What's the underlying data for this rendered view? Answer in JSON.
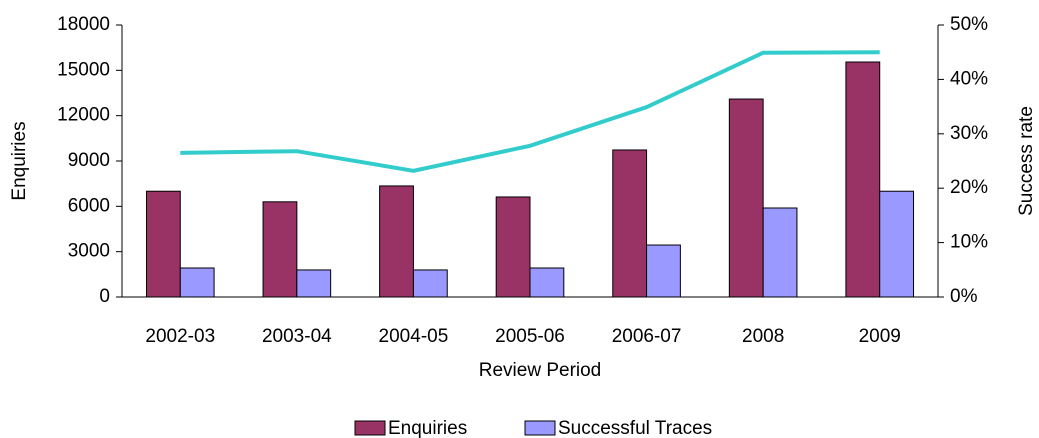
{
  "chart_data": {
    "type": "bar",
    "x_label": "Review Period",
    "y_label": "Enquiries",
    "y2_label": "Success rate",
    "categories": [
      "2002-03",
      "2003-04",
      "2004-05",
      "2005-06",
      "2006-07",
      "2008",
      "2009"
    ],
    "series": [
      {
        "name": "Enquiries",
        "color": "#993366",
        "values": [
          7000,
          6300,
          7350,
          6620,
          9730,
          13100,
          15550
        ]
      },
      {
        "name": "Successful Traces",
        "color": "#9999ff",
        "values": [
          1920,
          1790,
          1790,
          1920,
          3440,
          5890,
          7000
        ]
      },
      {
        "type": "line",
        "axis": "y2",
        "color": "#33cccc",
        "values": [
          26.5,
          26.8,
          23.2,
          27.8,
          34.9,
          44.9,
          45.0
        ]
      }
    ],
    "ylim": [
      0,
      18000
    ],
    "yticks": [
      0,
      3000,
      6000,
      9000,
      12000,
      15000,
      18000
    ],
    "y2lim": [
      0,
      50
    ],
    "y2ticks": [
      {
        "value": 0,
        "label": "0%"
      },
      {
        "value": 10,
        "label": "10%"
      },
      {
        "value": 20,
        "label": "20%"
      },
      {
        "value": 30,
        "label": "30%"
      },
      {
        "value": 40,
        "label": "40%"
      },
      {
        "value": 50,
        "label": "50%"
      }
    ],
    "grid": false,
    "legend": "bottom"
  }
}
